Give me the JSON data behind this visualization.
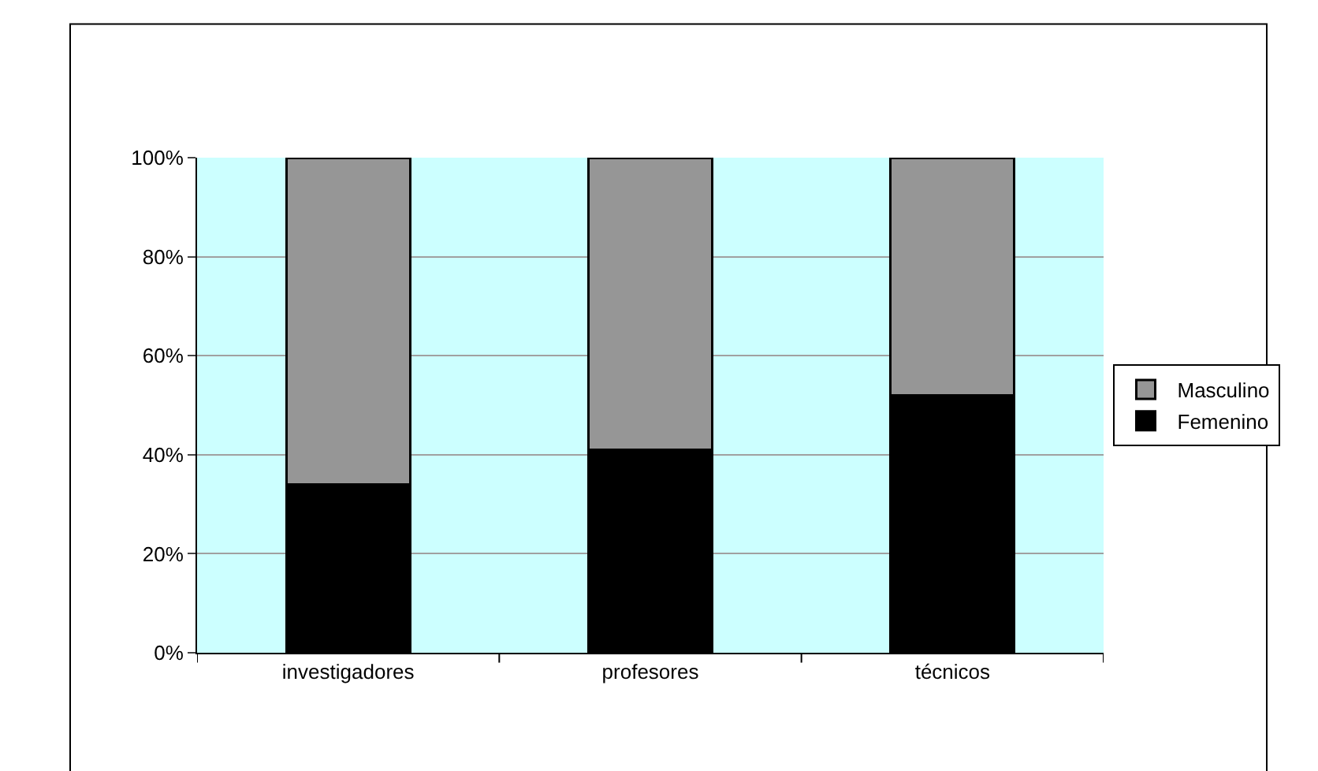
{
  "chart_data": {
    "type": "bar",
    "stacked": true,
    "categories": [
      "investigadores",
      "profesores",
      "técnicos"
    ],
    "series": [
      {
        "name": "Femenino",
        "color": "#000000",
        "values": [
          34,
          41,
          52
        ]
      },
      {
        "name": "Masculino",
        "color": "#969696",
        "values": [
          66,
          59,
          48
        ]
      }
    ],
    "ylim": [
      0,
      100
    ],
    "yticks": [
      {
        "value": 0,
        "label": "0%"
      },
      {
        "value": 20,
        "label": "20%"
      },
      {
        "value": 40,
        "label": "40%"
      },
      {
        "value": 60,
        "label": "60%"
      },
      {
        "value": 80,
        "label": "80%"
      },
      {
        "value": 100,
        "label": "100%"
      }
    ],
    "grid": "y",
    "legend": "right"
  }
}
